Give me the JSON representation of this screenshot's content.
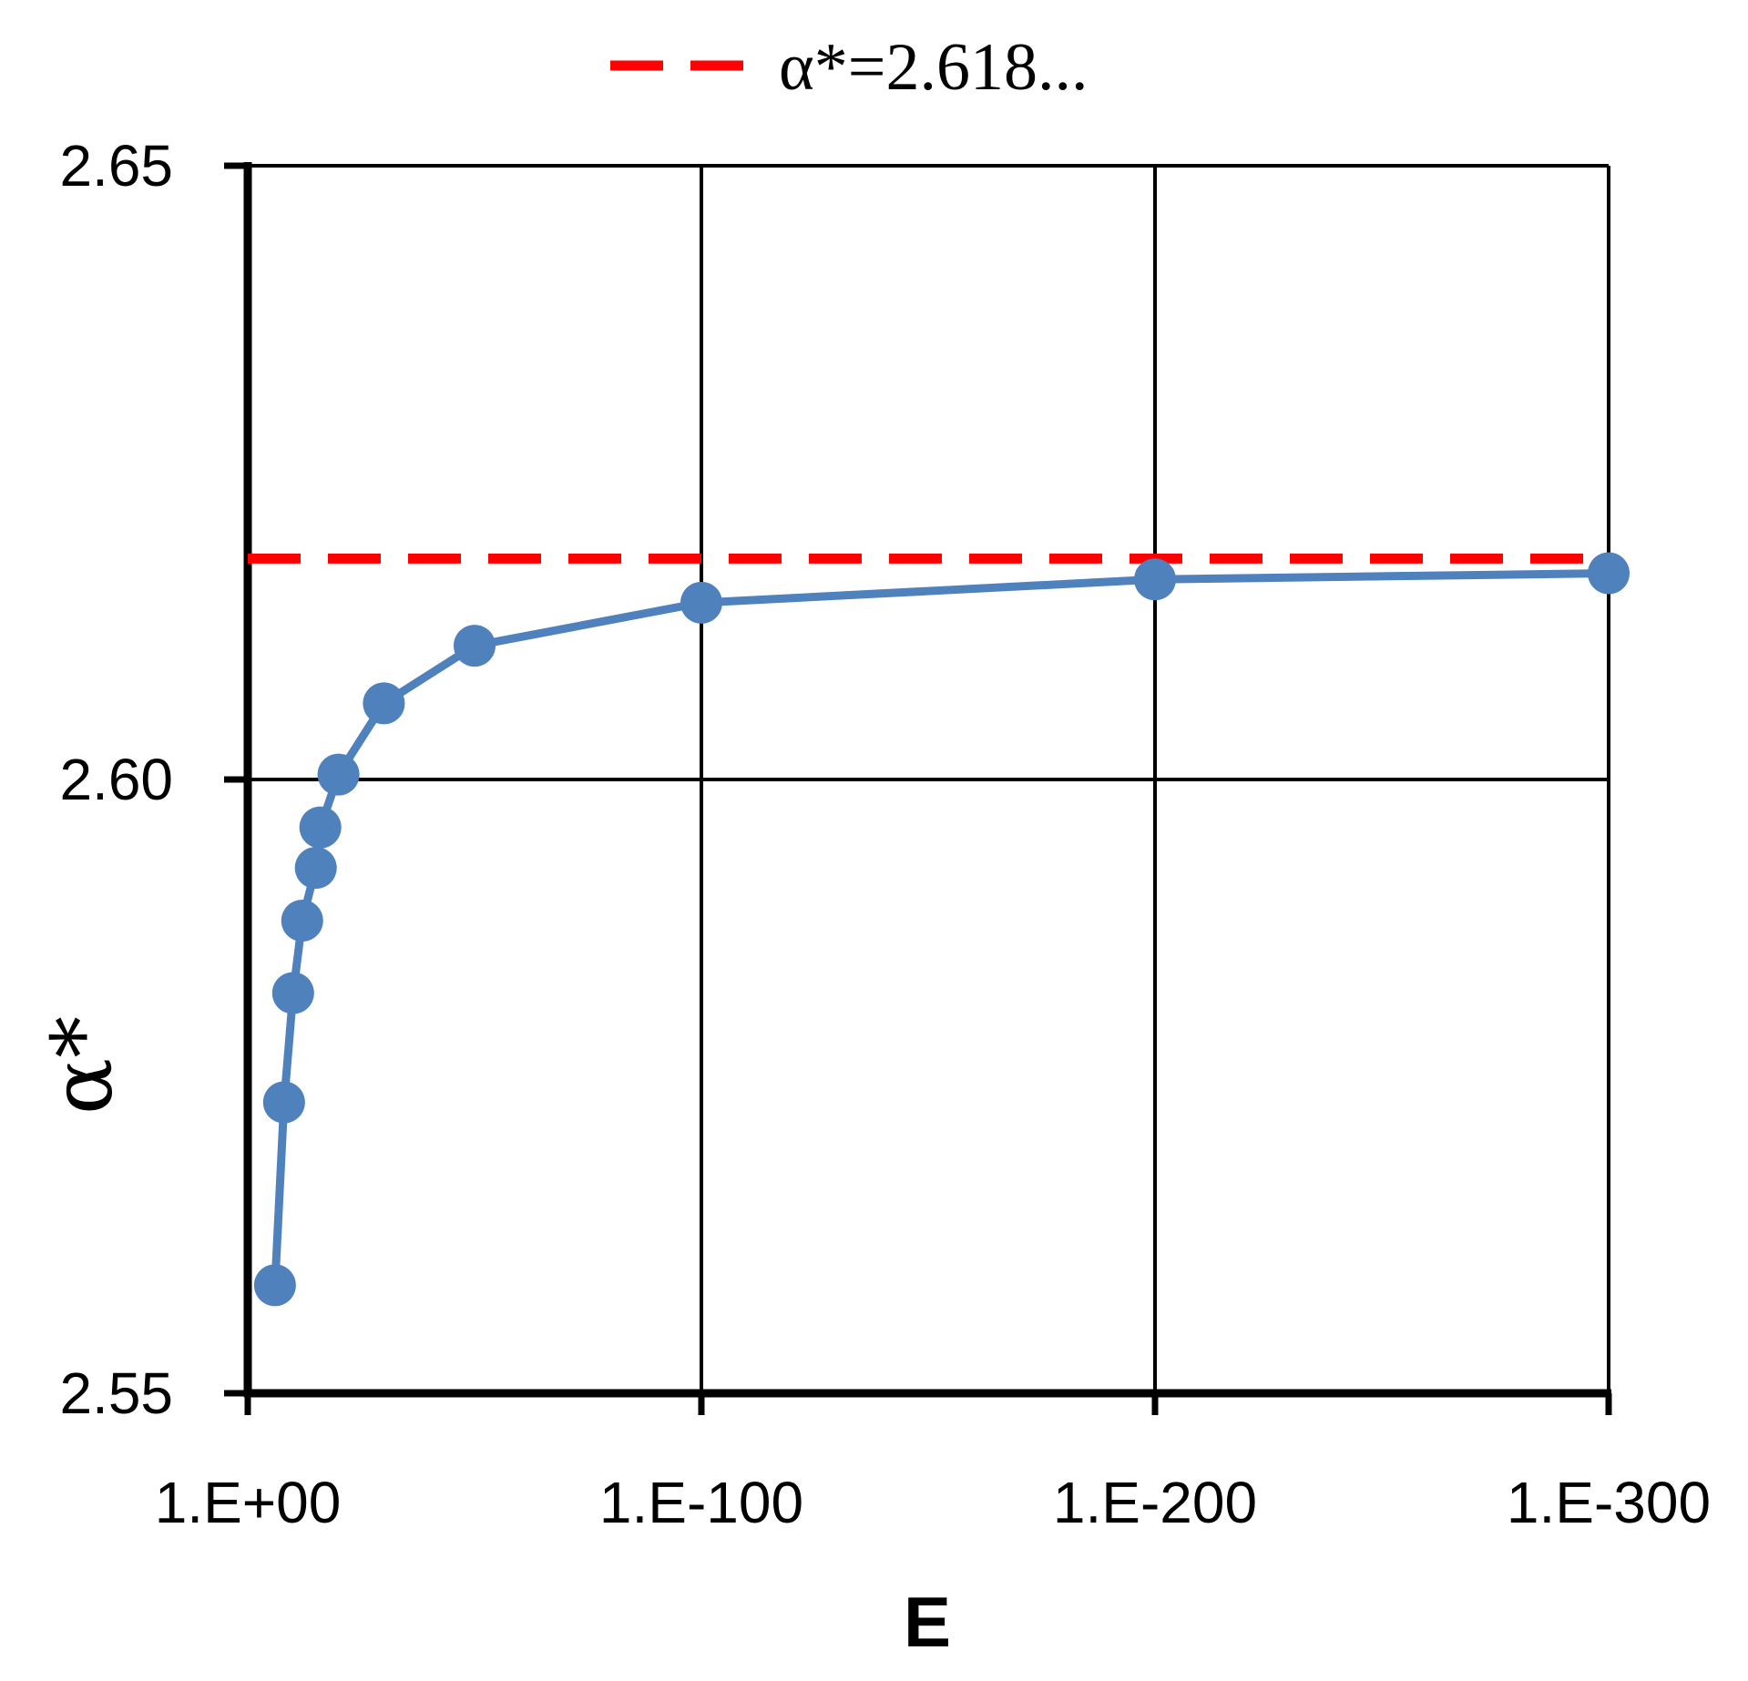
{
  "chart_data": {
    "type": "line",
    "title": "",
    "xlabel": "E",
    "ylabel": "α*",
    "x_scale": "log",
    "x_reversed": true,
    "x_unit_note": "",
    "x_ticks": [
      {
        "value": 1,
        "label": "1.E+00"
      },
      {
        "value": 1e-100,
        "label": "1.E-100"
      },
      {
        "value": 1e-200,
        "label": "1.E-200"
      },
      {
        "value": 1e-300,
        "label": "1.E-300"
      }
    ],
    "y_ticks": [
      {
        "value": 2.55,
        "label": "2.55"
      },
      {
        "value": 2.6,
        "label": "2.60"
      },
      {
        "value": 2.65,
        "label": "2.65"
      }
    ],
    "xlim": [
      "1.E+00",
      "1.E-300"
    ],
    "ylim": [
      2.55,
      2.65
    ],
    "grid": true,
    "legend": {
      "position": "top-center",
      "entries": [
        {
          "label": "α*=2.618...",
          "color": "#ff0000",
          "style": "dashed"
        }
      ]
    },
    "reference_line": {
      "y": 2.618,
      "color": "#ff0000",
      "style": "dashed"
    },
    "series": [
      {
        "color": "#4f81bd",
        "points": [
          {
            "x": "1.E-06",
            "y": 2.5588
          },
          {
            "x": "1.E-08",
            "y": 2.5737
          },
          {
            "x": "1.E-10",
            "y": 2.5826
          },
          {
            "x": "1.E-12",
            "y": 2.5885
          },
          {
            "x": "1.E-15",
            "y": 2.5928
          },
          {
            "x": "1.E-16",
            "y": 2.5961
          },
          {
            "x": "1.E-20",
            "y": 2.6004
          },
          {
            "x": "1.E-30",
            "y": 2.6062
          },
          {
            "x": "1.E-50",
            "y": 2.6109
          },
          {
            "x": "1.E-100",
            "y": 2.6144
          },
          {
            "x": "1.E-200",
            "y": 2.6163
          },
          {
            "x": "1.E-300",
            "y": 2.6168
          }
        ]
      }
    ]
  }
}
